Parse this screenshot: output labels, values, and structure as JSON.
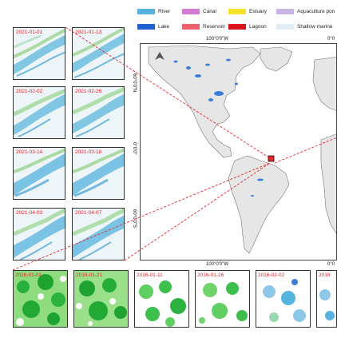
{
  "legend": {
    "items": [
      {
        "label": "River",
        "color": "#56b3e0"
      },
      {
        "label": "Canal",
        "color": "#d37bd3"
      },
      {
        "label": "Estuary",
        "color": "#f5e12a"
      },
      {
        "label": "Aquaculture pon",
        "color": "#c9b3e3"
      },
      {
        "label": "Lake",
        "color": "#1f5fd1"
      },
      {
        "label": "Reservoir",
        "color": "#f2606e"
      },
      {
        "label": "Lagoon",
        "color": "#d8141c"
      },
      {
        "label": "Shallow marine",
        "color": "#e3ecf5"
      }
    ]
  },
  "thumbnails": {
    "left_column": [
      "2021-01-01",
      "2021-02-02",
      "2021-03-14",
      "2021-04-03"
    ],
    "right_column": [
      "2021-01-13",
      "2021-02-26",
      "2021-03-18",
      "2021-04-07"
    ]
  },
  "bottom_row": [
    "2016-01-01",
    "2016-01-21",
    "2016-01-11",
    "2016-01-26",
    "2016-02-02",
    "2016"
  ],
  "map": {
    "axes": {
      "top_left": "100°0'0\"W",
      "top_right": "0°0",
      "bottom_left": "100°0'0\"W",
      "bottom_right": "0°0",
      "left_top": "60°0'0\"N",
      "left_mid": "0°0'0\"",
      "left_bottom": "60°0'0\"S"
    },
    "north_arrow": "north-arrow-icon",
    "colors": {
      "land": "#e9e9e9",
      "water_cover": "#3b7dd8",
      "highlight": "#e8242d"
    }
  }
}
